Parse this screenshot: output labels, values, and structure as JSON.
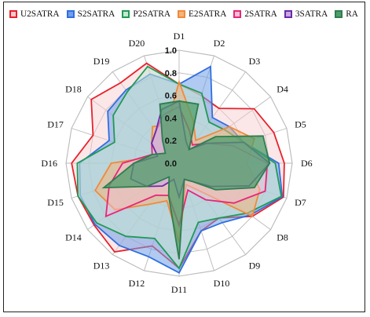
{
  "chart_data": {
    "type": "radar",
    "title": "",
    "categories": [
      "D1",
      "D2",
      "D3",
      "D4",
      "D5",
      "D6",
      "D7",
      "D8",
      "D9",
      "D10",
      "D11",
      "D12",
      "D13",
      "D14",
      "D15",
      "D16",
      "D17",
      "D18",
      "D19",
      "D20"
    ],
    "rlim": [
      0,
      1.0
    ],
    "rticks": [
      "0.0",
      "0.2",
      "0.4",
      "0.6",
      "0.8",
      "1.0"
    ],
    "grid": true,
    "legend_position": "top",
    "series": [
      {
        "name": "U2SATRA",
        "edge": "#e8212b",
        "fill": "#f7c9cd",
        "fill_opacity": 0.45,
        "values": [
          0.7,
          0.63,
          0.6,
          0.82,
          0.88,
          0.93,
          0.97,
          0.8,
          0.6,
          0.63,
          0.93,
          0.77,
          0.97,
          0.93,
          0.94,
          0.95,
          0.8,
          0.96,
          0.88,
          0.93
        ]
      },
      {
        "name": "S2SATRA",
        "edge": "#2f6fe0",
        "fill": "#6f9fe8",
        "fill_opacity": 0.55,
        "values": [
          0.7,
          0.9,
          0.5,
          0.55,
          0.6,
          0.88,
          0.96,
          0.78,
          0.65,
          0.63,
          0.97,
          0.87,
          0.9,
          0.92,
          0.92,
          0.88,
          0.65,
          0.78,
          0.8,
          0.83
        ]
      },
      {
        "name": "P2SATRA",
        "edge": "#1e9a55",
        "fill": "#c5e8d0",
        "fill_opacity": 0.55,
        "values": [
          0.7,
          0.65,
          0.45,
          0.5,
          0.6,
          0.85,
          0.95,
          0.75,
          0.6,
          0.55,
          0.93,
          0.7,
          0.8,
          0.9,
          0.94,
          0.9,
          0.6,
          0.72,
          0.78,
          0.9
        ]
      },
      {
        "name": "E2SATRA",
        "edge": "#f08a3c",
        "fill": "#f4b47a",
        "fill_opacity": 0.55,
        "values": [
          0.72,
          0.4,
          0.25,
          0.55,
          0.7,
          0.6,
          0.75,
          0.8,
          0.3,
          0.2,
          0.7,
          0.35,
          0.45,
          0.7,
          0.78,
          0.6,
          0.2,
          0.3,
          0.4,
          0.35
        ]
      },
      {
        "name": "2SATRA",
        "edge": "#e8257a",
        "fill": "#f6bed6",
        "fill_opacity": 0.45,
        "values": [
          0.5,
          0.3,
          0.2,
          0.3,
          0.5,
          0.78,
          0.8,
          0.6,
          0.4,
          0.25,
          0.55,
          0.3,
          0.35,
          0.8,
          0.65,
          0.5,
          0.25,
          0.3,
          0.35,
          0.45
        ]
      },
      {
        "name": "3SATRA",
        "edge": "#6b2aa8",
        "fill": "#c9a8e0",
        "fill_opacity": 0.55,
        "values": [
          0.55,
          0.2,
          0.15,
          0.3,
          0.6,
          0.8,
          0.65,
          0.35,
          0.2,
          0.15,
          0.3,
          0.15,
          0.25,
          0.35,
          0.45,
          0.4,
          0.2,
          0.3,
          0.35,
          0.5
        ]
      },
      {
        "name": "RA",
        "edge": "#2e7d4f",
        "fill": "#4f9e6a",
        "fill_opacity": 0.75,
        "values": [
          0.55,
          0.55,
          0.15,
          0.4,
          0.78,
          0.8,
          0.7,
          0.4,
          0.2,
          0.15,
          0.85,
          0.3,
          0.15,
          0.35,
          0.7,
          0.4,
          0.25,
          0.15,
          0.25,
          0.55
        ]
      }
    ]
  }
}
